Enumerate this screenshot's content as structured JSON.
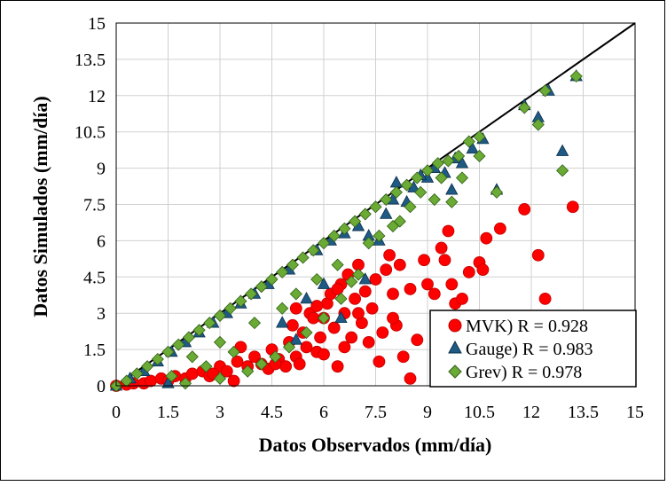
{
  "chart_data": {
    "type": "scatter",
    "title": "",
    "xlabel": "Datos Observados (mm/día)",
    "ylabel": "Datos Simulados (mm/día)",
    "xlim": [
      0,
      15
    ],
    "ylim": [
      0,
      15
    ],
    "xticks": [
      "0",
      "1.5",
      "3",
      "4.5",
      "6",
      "7.5",
      "9",
      "10.5",
      "12",
      "13.5",
      "15"
    ],
    "yticks": [
      "0",
      "1.5",
      "3",
      "4.5",
      "6",
      "7.5",
      "9",
      "10.5",
      "12",
      "13.5",
      "15"
    ],
    "grid": true,
    "legend_position": "bottom-right",
    "reference_line": {
      "from": [
        0,
        0
      ],
      "to": [
        15,
        15
      ],
      "color": "#000000"
    },
    "series": [
      {
        "name": "MVK) R = 0.928",
        "marker": "circle",
        "color": "#ff0000",
        "points": [
          [
            0.0,
            0.0
          ],
          [
            0.3,
            0.05
          ],
          [
            0.5,
            0.1
          ],
          [
            0.8,
            0.1
          ],
          [
            1.0,
            0.2
          ],
          [
            1.3,
            0.3
          ],
          [
            1.5,
            0.2
          ],
          [
            1.7,
            0.4
          ],
          [
            2.0,
            0.3
          ],
          [
            2.2,
            0.5
          ],
          [
            2.5,
            0.6
          ],
          [
            2.7,
            0.4
          ],
          [
            3.0,
            0.8
          ],
          [
            3.2,
            0.6
          ],
          [
            3.4,
            0.2
          ],
          [
            3.5,
            1.0
          ],
          [
            3.8,
            0.8
          ],
          [
            4.0,
            1.2
          ],
          [
            4.2,
            0.9
          ],
          [
            4.4,
            0.7
          ],
          [
            4.5,
            1.5
          ],
          [
            4.7,
            1.1
          ],
          [
            4.9,
            0.8
          ],
          [
            5.0,
            1.8
          ],
          [
            5.1,
            2.5
          ],
          [
            5.2,
            1.2
          ],
          [
            5.3,
            0.9
          ],
          [
            5.4,
            2.2
          ],
          [
            5.5,
            1.6
          ],
          [
            5.6,
            3.0
          ],
          [
            5.7,
            2.8
          ],
          [
            5.8,
            1.4
          ],
          [
            5.9,
            2.0
          ],
          [
            6.0,
            1.3
          ],
          [
            6.1,
            3.4
          ],
          [
            6.2,
            3.8
          ],
          [
            6.3,
            2.4
          ],
          [
            6.4,
            0.8
          ],
          [
            6.5,
            4.2
          ],
          [
            6.6,
            3.0
          ],
          [
            6.7,
            4.6
          ],
          [
            6.8,
            2.0
          ],
          [
            6.9,
            3.6
          ],
          [
            7.0,
            5.0
          ],
          [
            7.1,
            2.6
          ],
          [
            7.2,
            3.9
          ],
          [
            7.4,
            3.2
          ],
          [
            7.5,
            4.4
          ],
          [
            7.6,
            1.0
          ],
          [
            7.7,
            2.2
          ],
          [
            7.8,
            4.8
          ],
          [
            7.9,
            5.4
          ],
          [
            8.0,
            3.8
          ],
          [
            8.1,
            2.5
          ],
          [
            8.2,
            5.0
          ],
          [
            8.3,
            1.2
          ],
          [
            8.5,
            4.0
          ],
          [
            8.5,
            0.3
          ],
          [
            8.7,
            1.9
          ],
          [
            8.9,
            5.2
          ],
          [
            9.0,
            4.2
          ],
          [
            9.2,
            3.8
          ],
          [
            9.4,
            5.7
          ],
          [
            9.5,
            5.2
          ],
          [
            9.6,
            6.4
          ],
          [
            9.7,
            4.2
          ],
          [
            9.8,
            3.4
          ],
          [
            10.0,
            3.6
          ],
          [
            10.2,
            4.7
          ],
          [
            10.5,
            5.1
          ],
          [
            10.6,
            4.8
          ],
          [
            10.7,
            6.1
          ],
          [
            11.1,
            6.5
          ],
          [
            11.8,
            7.3
          ],
          [
            12.2,
            5.4
          ],
          [
            12.4,
            3.6
          ],
          [
            13.2,
            7.4
          ],
          [
            2.8,
            0.5
          ],
          [
            3.6,
            1.6
          ],
          [
            4.6,
            0.9
          ],
          [
            5.2,
            3.2
          ],
          [
            6.0,
            2.8
          ],
          [
            6.6,
            1.6
          ],
          [
            7.3,
            1.8
          ],
          [
            8.0,
            2.8
          ],
          [
            5.8,
            3.3
          ],
          [
            6.4,
            4.0
          ],
          [
            7.0,
            3.0
          ]
        ]
      },
      {
        "name": "Gauge) R = 0.983",
        "marker": "triangle",
        "color": "#1f5a85",
        "points": [
          [
            0.0,
            0.0
          ],
          [
            0.4,
            0.3
          ],
          [
            0.8,
            0.6
          ],
          [
            1.2,
            1.0
          ],
          [
            1.5,
            0.1
          ],
          [
            1.6,
            1.4
          ],
          [
            2.0,
            1.8
          ],
          [
            2.4,
            2.2
          ],
          [
            2.8,
            2.6
          ],
          [
            3.2,
            3.0
          ],
          [
            3.6,
            3.4
          ],
          [
            4.0,
            3.8
          ],
          [
            4.4,
            4.2
          ],
          [
            4.8,
            2.6
          ],
          [
            5.0,
            4.8
          ],
          [
            5.2,
            1.9
          ],
          [
            5.5,
            3.6
          ],
          [
            5.8,
            5.6
          ],
          [
            6.0,
            4.2
          ],
          [
            6.2,
            6.0
          ],
          [
            6.5,
            2.8
          ],
          [
            6.6,
            6.3
          ],
          [
            7.0,
            6.6
          ],
          [
            7.2,
            4.4
          ],
          [
            7.3,
            6.2
          ],
          [
            7.6,
            6.0
          ],
          [
            8.0,
            7.7
          ],
          [
            8.4,
            7.6
          ],
          [
            8.6,
            8.2
          ],
          [
            9.0,
            8.6
          ],
          [
            9.2,
            9.0
          ],
          [
            9.5,
            8.8
          ],
          [
            9.8,
            9.4
          ],
          [
            10.0,
            9.2
          ],
          [
            10.3,
            9.8
          ],
          [
            10.6,
            10.2
          ],
          [
            11.0,
            8.1
          ],
          [
            11.8,
            11.6
          ],
          [
            12.2,
            11.1
          ],
          [
            12.5,
            12.2
          ],
          [
            12.9,
            9.7
          ],
          [
            13.3,
            12.8
          ],
          [
            7.8,
            7.1
          ],
          [
            8.1,
            8.4
          ],
          [
            9.7,
            8.1
          ],
          [
            8.8,
            8.7
          ]
        ]
      },
      {
        "name": "Grev) R = 0.978",
        "marker": "diamond",
        "color": "#6aaa35",
        "points": [
          [
            0.0,
            0.0
          ],
          [
            0.3,
            0.2
          ],
          [
            0.6,
            0.5
          ],
          [
            0.9,
            0.8
          ],
          [
            1.2,
            1.1
          ],
          [
            1.5,
            1.4
          ],
          [
            1.8,
            1.7
          ],
          [
            2.0,
            0.1
          ],
          [
            2.1,
            2.0
          ],
          [
            2.4,
            2.3
          ],
          [
            2.7,
            2.6
          ],
          [
            3.0,
            2.9
          ],
          [
            3.0,
            0.3
          ],
          [
            3.3,
            3.2
          ],
          [
            3.6,
            3.5
          ],
          [
            3.8,
            0.6
          ],
          [
            3.9,
            3.8
          ],
          [
            4.2,
            4.1
          ],
          [
            4.5,
            4.4
          ],
          [
            4.6,
            1.2
          ],
          [
            4.8,
            4.7
          ],
          [
            5.1,
            5.0
          ],
          [
            5.4,
            5.3
          ],
          [
            5.7,
            5.6
          ],
          [
            6.0,
            5.9
          ],
          [
            6.3,
            6.2
          ],
          [
            6.6,
            6.5
          ],
          [
            6.9,
            6.8
          ],
          [
            7.2,
            7.1
          ],
          [
            7.5,
            7.4
          ],
          [
            7.8,
            7.7
          ],
          [
            8.1,
            8.0
          ],
          [
            8.4,
            8.3
          ],
          [
            8.7,
            8.6
          ],
          [
            9.0,
            8.9
          ],
          [
            9.3,
            9.2
          ],
          [
            9.6,
            9.3
          ],
          [
            9.9,
            9.5
          ],
          [
            10.2,
            10.1
          ],
          [
            10.5,
            10.3
          ],
          [
            10.5,
            9.5
          ],
          [
            11.0,
            8.0
          ],
          [
            11.8,
            11.5
          ],
          [
            12.2,
            10.8
          ],
          [
            12.4,
            12.2
          ],
          [
            12.9,
            8.9
          ],
          [
            13.3,
            12.8
          ],
          [
            8.5,
            7.4
          ],
          [
            8.0,
            6.6
          ],
          [
            9.2,
            7.7
          ],
          [
            9.7,
            7.6
          ],
          [
            10.0,
            8.6
          ],
          [
            7.3,
            5.9
          ],
          [
            6.8,
            4.3
          ],
          [
            6.5,
            3.6
          ],
          [
            6.0,
            2.8
          ],
          [
            5.5,
            2.2
          ],
          [
            5.0,
            1.6
          ],
          [
            4.2,
            0.9
          ],
          [
            3.4,
            1.4
          ],
          [
            2.6,
            0.8
          ],
          [
            1.6,
            0.4
          ],
          [
            7.0,
            4.6
          ],
          [
            7.6,
            6.2
          ],
          [
            8.2,
            6.8
          ],
          [
            5.8,
            4.4
          ],
          [
            4.8,
            3.2
          ],
          [
            4.0,
            2.6
          ],
          [
            3.0,
            1.8
          ],
          [
            2.2,
            1.2
          ],
          [
            8.8,
            8.0
          ],
          [
            9.4,
            8.6
          ],
          [
            6.4,
            5.0
          ],
          [
            5.2,
            3.8
          ]
        ]
      }
    ]
  }
}
